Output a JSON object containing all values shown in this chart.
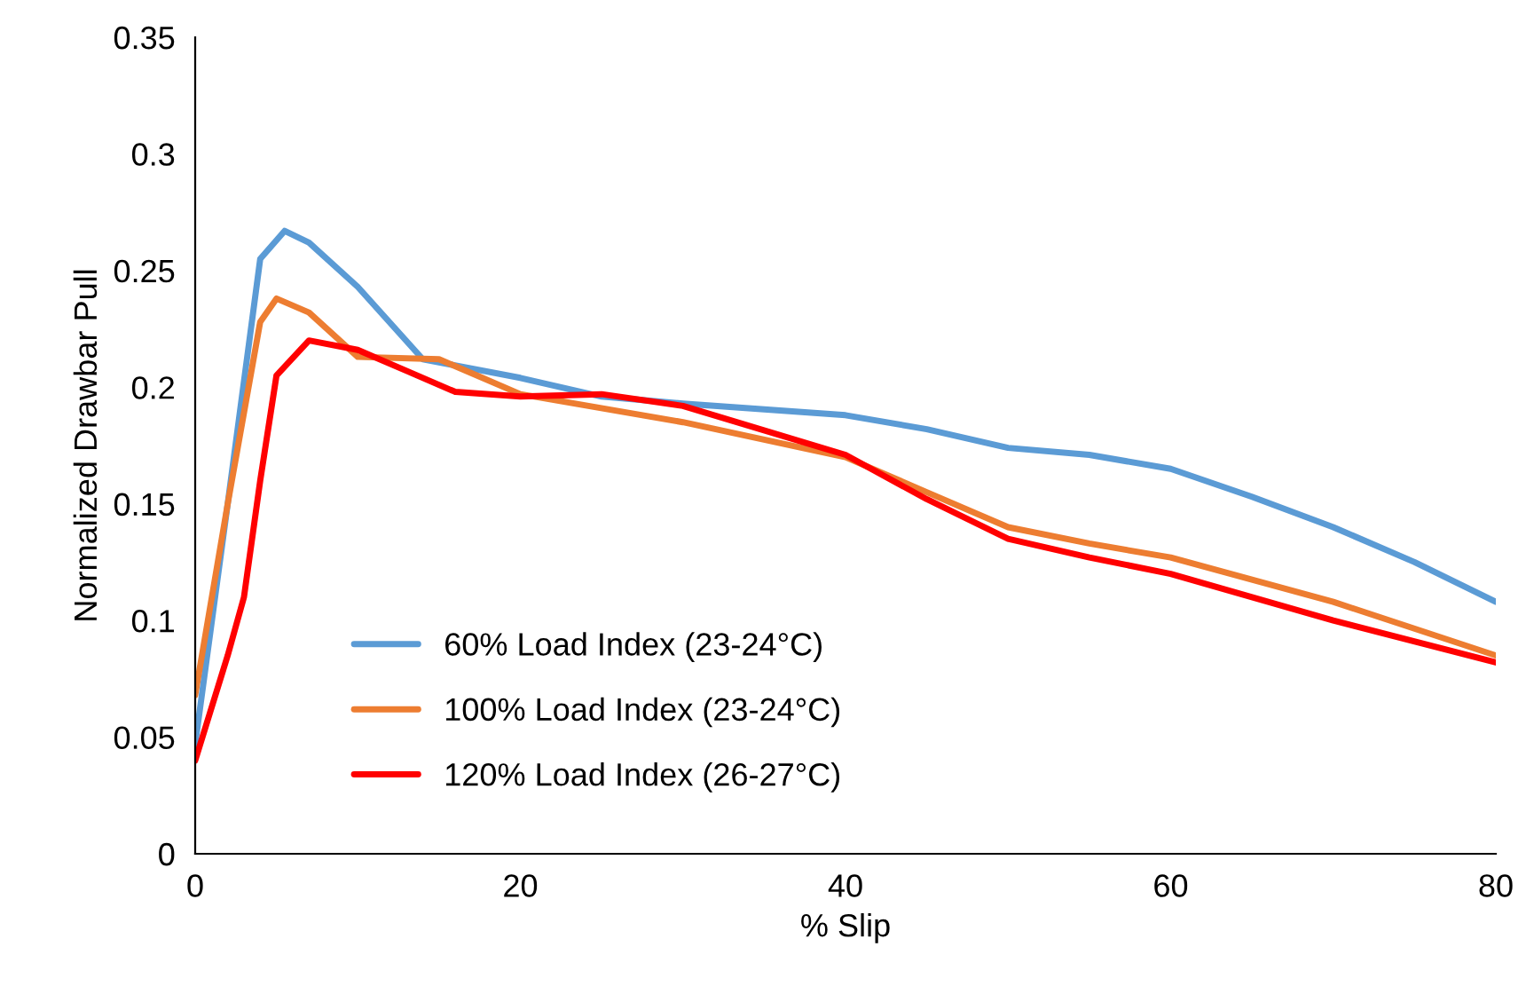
{
  "chart_data": {
    "type": "line",
    "xlabel": "% Slip",
    "ylabel": "Normalized Drawbar Pull",
    "xlim": [
      0,
      80
    ],
    "xticks": [
      0,
      20,
      40,
      60,
      80
    ],
    "ylim": [
      0,
      0.35
    ],
    "yticks": [
      0,
      0.05,
      0.1,
      0.15,
      0.2,
      0.25,
      0.3,
      0.35
    ],
    "grid": false,
    "legend": "bottom left",
    "marker": "none",
    "line_style": "solid",
    "series": [
      {
        "name": "60% Load Index (23-24°C)",
        "color": "#5b9bd5",
        "x": [
          0,
          2,
          4,
          5.5,
          7,
          10,
          14,
          20,
          25,
          30,
          40,
          45,
          50,
          55,
          60,
          65,
          70,
          75,
          80
        ],
        "values": [
          0.047,
          0.15,
          0.255,
          0.267,
          0.262,
          0.243,
          0.212,
          0.204,
          0.196,
          0.193,
          0.188,
          0.182,
          0.174,
          0.171,
          0.165,
          0.153,
          0.14,
          0.125,
          0.108
        ]
      },
      {
        "name": "100% Load Index (23-24°C)",
        "color": "#ed7d31",
        "x": [
          0,
          2,
          4,
          5,
          7,
          10,
          15,
          20,
          30,
          40,
          45,
          50,
          55,
          60,
          70,
          80
        ],
        "values": [
          0.068,
          0.15,
          0.228,
          0.238,
          0.232,
          0.213,
          0.212,
          0.197,
          0.185,
          0.17,
          0.155,
          0.14,
          0.133,
          0.127,
          0.108,
          0.085
        ]
      },
      {
        "name": "120% Load Index (26-27°C)",
        "color": "#ff0000",
        "x": [
          0,
          2,
          3,
          4,
          5,
          7,
          10,
          13,
          16,
          20,
          25,
          30,
          40,
          45,
          50,
          55,
          60,
          70,
          80
        ],
        "values": [
          0.04,
          0.085,
          0.11,
          0.16,
          0.205,
          0.22,
          0.216,
          0.207,
          0.198,
          0.196,
          0.197,
          0.192,
          0.171,
          0.152,
          0.135,
          0.127,
          0.12,
          0.1,
          0.082
        ]
      }
    ]
  }
}
